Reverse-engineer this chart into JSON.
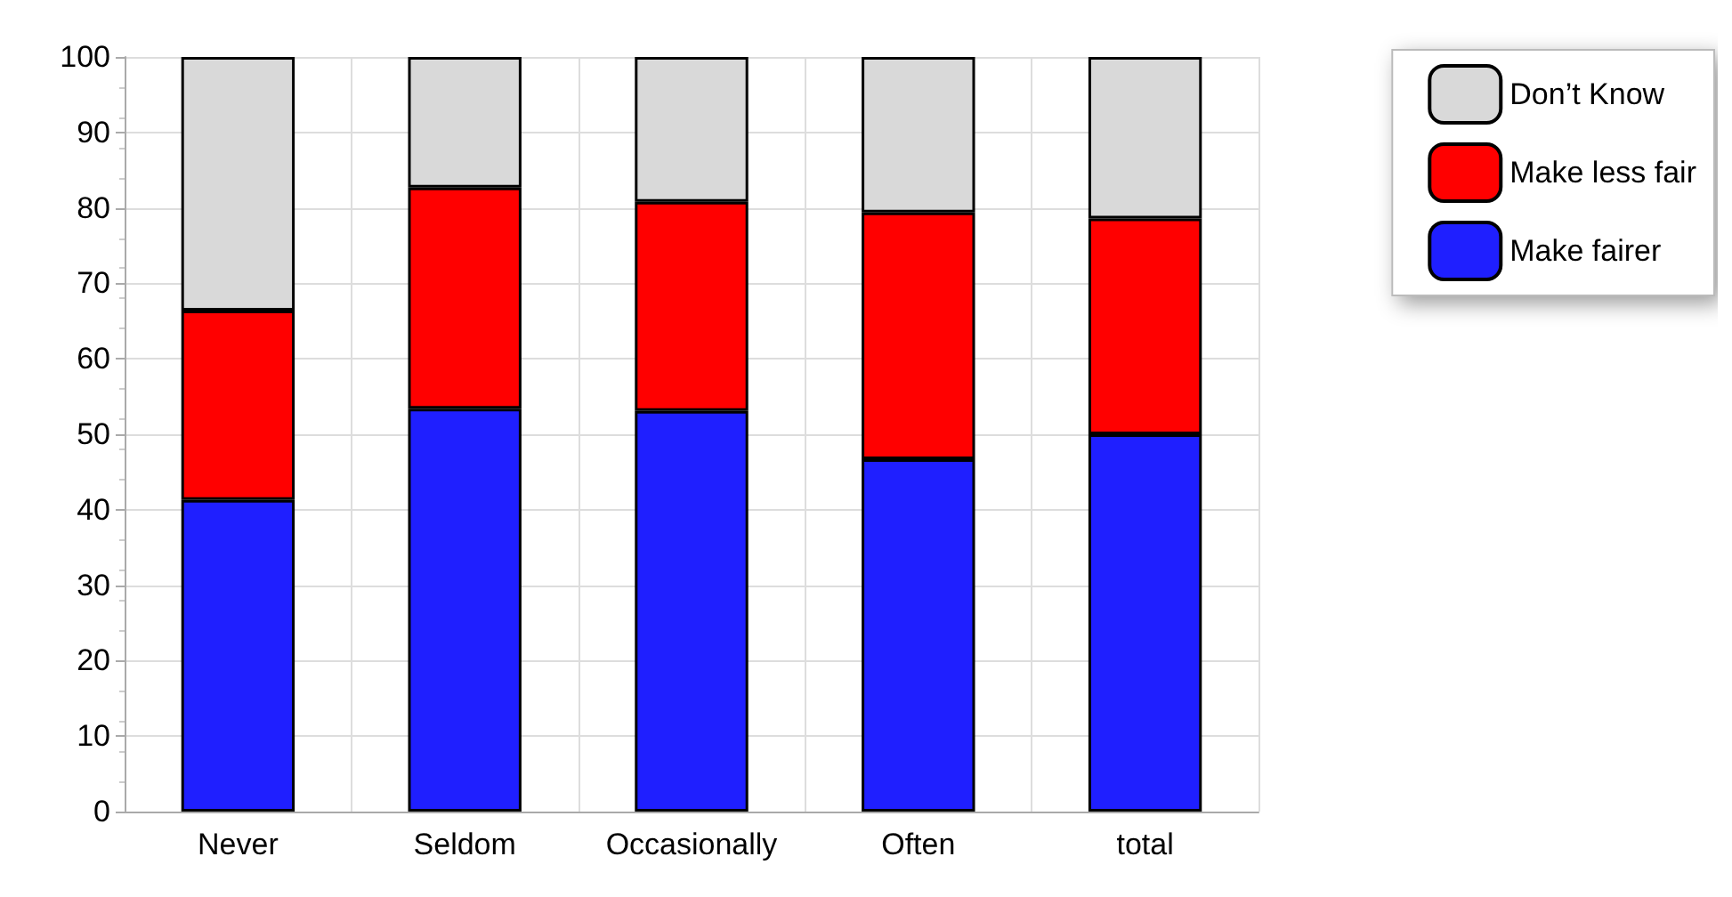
{
  "chart_data": {
    "type": "bar",
    "stacked": true,
    "categories": [
      "Never",
      "Seldom",
      "Occasionally",
      "Often",
      "total"
    ],
    "series": [
      {
        "name": "Make fairer",
        "color": "#1f1fff",
        "values": [
          41.3,
          53.4,
          53.1,
          46.7,
          50
        ]
      },
      {
        "name": "Make less fair",
        "color": "#ff0000",
        "values": [
          25.1,
          29.3,
          27.7,
          32.7,
          28.6
        ]
      },
      {
        "name": "Don’t Know",
        "color": "#d9d9d9",
        "values": [
          33.6,
          17.3,
          19.2,
          20.6,
          21.4
        ]
      }
    ],
    "ylim": [
      0,
      100
    ],
    "yticks": [
      0,
      10,
      20,
      30,
      40,
      50,
      60,
      70,
      80,
      90,
      100
    ],
    "grid": true,
    "legend": "top right"
  }
}
